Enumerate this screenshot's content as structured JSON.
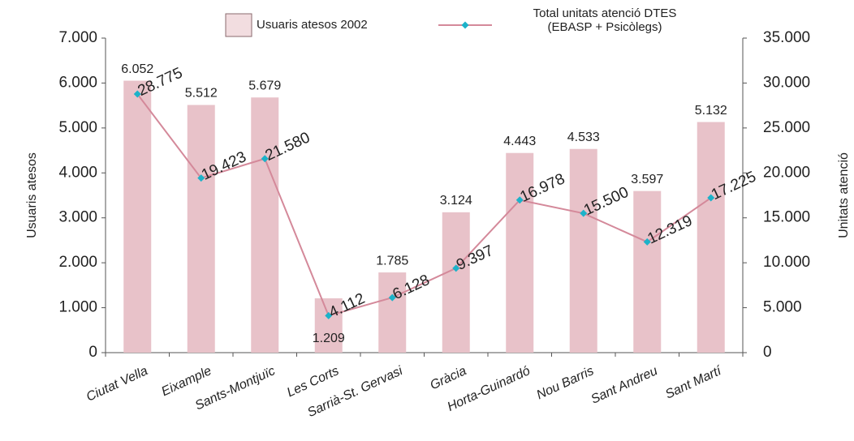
{
  "chart_data": {
    "type": "bar_line",
    "categories": [
      "Ciutat Vella",
      "Eixample",
      "Sants-Montjuïc",
      "Les Corts",
      "Sarrià-St. Gervasi",
      "Gràcia",
      "Horta-Guinardó",
      "Nou Barris",
      "Sant Andreu",
      "Sant Martí"
    ],
    "series": [
      {
        "name": "Usuaris atesos 2002",
        "type": "bar",
        "color": "#e8c2c9",
        "values": [
          6052,
          5512,
          5679,
          1209,
          1785,
          3124,
          4443,
          4533,
          3597,
          5132
        ],
        "value_labels": [
          "6.052",
          "5.512",
          "5.679",
          "1.209",
          "1.785",
          "3.124",
          "4.443",
          "4.533",
          "3.597",
          "5.132"
        ]
      },
      {
        "name": "Total unitats atenció DTES\n(EBASP + Psicòlegs)",
        "type": "line",
        "axis": "y2",
        "color": "#d4899a",
        "marker_color": "#1cb2c9",
        "values": [
          28775,
          19423,
          21580,
          4112,
          6128,
          9397,
          16978,
          15500,
          12319,
          17225
        ],
        "value_labels": [
          "28.775",
          "19.423",
          "21.580",
          "4.112",
          "6.128",
          "9.397",
          "16.978",
          "15.500",
          "12.319",
          "17.225"
        ]
      }
    ],
    "ylabel": "Usuaris atesos",
    "y2label": "Unitats atenció",
    "ylim": [
      0,
      7000
    ],
    "yticks": [
      0,
      {
        "value": 1000,
        "label": "1.000"
      },
      {
        "value": 2000,
        "label": "2.000"
      },
      {
        "value": 3000,
        "label": "3.000"
      },
      {
        "value": 4000,
        "label": "4.000"
      },
      {
        "value": 5000,
        "label": "5.000"
      },
      {
        "value": 6000,
        "label": "6.000"
      },
      {
        "value": 7000,
        "label": "7.000"
      }
    ],
    "y2lim": [
      0,
      35000
    ],
    "y2ticks": [
      0,
      {
        "value": 5000,
        "label": "5.000"
      },
      {
        "value": 10000,
        "label": "10.000"
      },
      {
        "value": 15000,
        "label": "15.000"
      },
      {
        "value": 20000,
        "label": "20.000"
      },
      {
        "value": 25000,
        "label": "25.000"
      },
      {
        "value": 30000,
        "label": "30.000"
      },
      {
        "value": 35000,
        "label": "35.000"
      }
    ],
    "grid": false
  }
}
